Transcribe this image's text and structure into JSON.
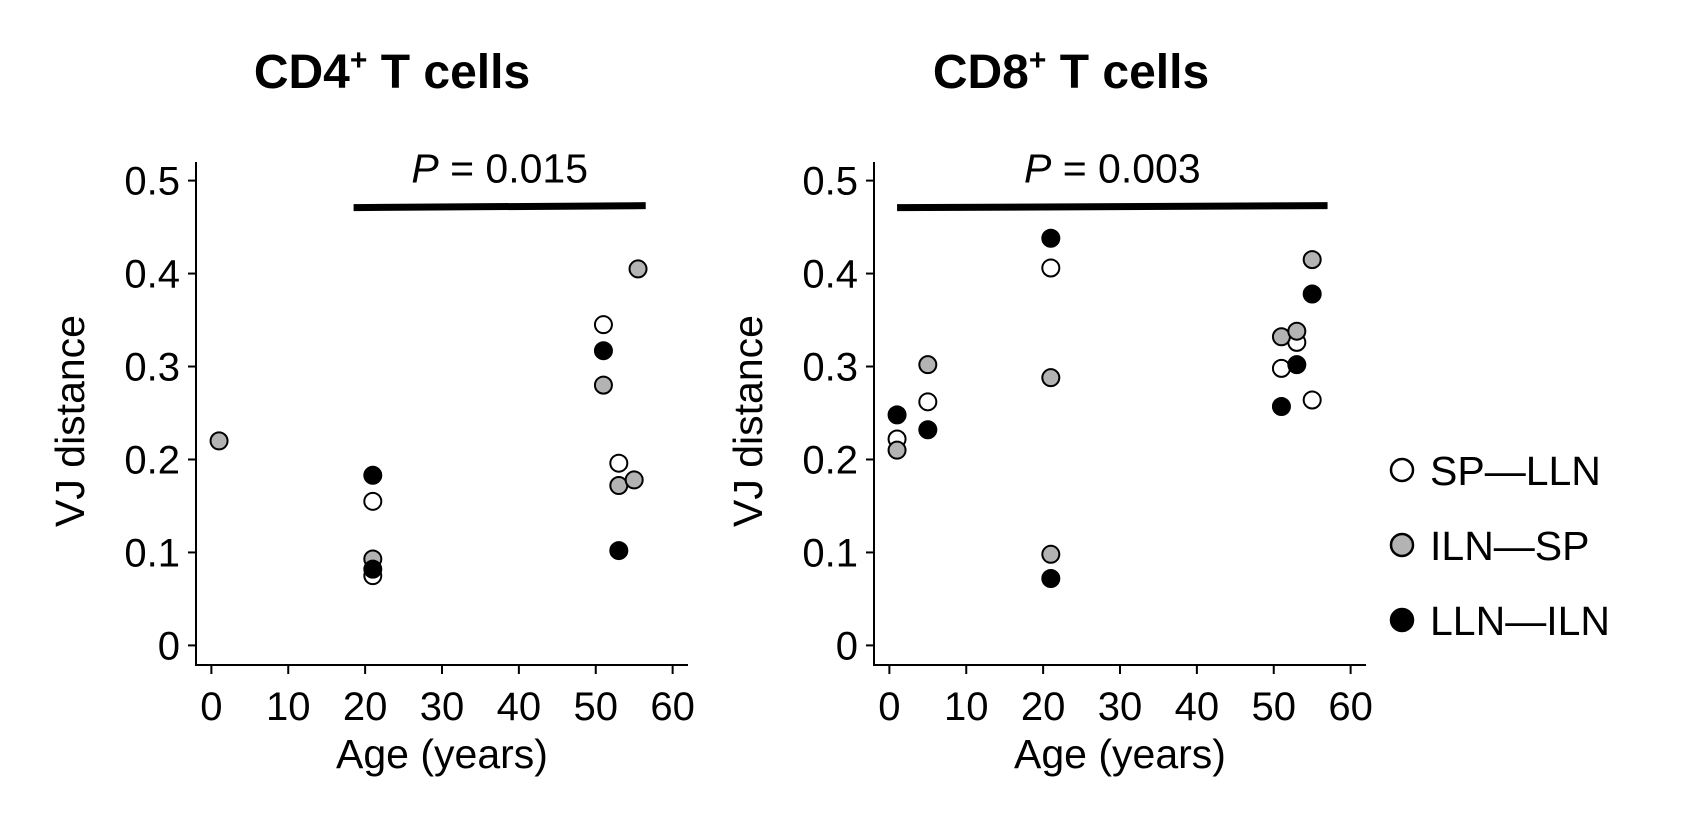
{
  "colors": {
    "SP-LLN": "#ffffff",
    "ILN-SP": "#b3b3b3",
    "LLN-ILN": "#000000",
    "stroke": "#000000"
  },
  "legend": {
    "entries": [
      {
        "key": "SP-LLN",
        "label": "SP—LLN"
      },
      {
        "key": "ILN-SP",
        "label": "ILN—SP"
      },
      {
        "key": "LLN-ILN",
        "label": "LLN—ILN"
      }
    ],
    "placement": "right"
  },
  "chart_data": [
    {
      "type": "scatter",
      "title_main": "CD4",
      "title_sup": "+",
      "title_rest": " T cells",
      "xlabel": "Age (years)",
      "ylabel": "VJ distance",
      "xlim": [
        -2,
        62
      ],
      "ylim": [
        -0.02,
        0.52
      ],
      "xticks": [
        0,
        10,
        20,
        30,
        40,
        50,
        60
      ],
      "yticks": [
        0,
        0.1,
        0.2,
        0.3,
        0.4,
        0.5
      ],
      "ytick_labels": [
        "0",
        "0.1",
        "0.2",
        "0.3",
        "0.4",
        "0.5"
      ],
      "annotation": {
        "p_label": "P",
        "p_text": " = 0.015",
        "x_range": [
          18.5,
          56.5
        ],
        "y": 0.472
      },
      "series": [
        {
          "key": "SP-LLN",
          "name": "SP—LLN",
          "x": [
            21,
            21,
            51,
            53
          ],
          "y": [
            0.155,
            0.075,
            0.345,
            0.196
          ]
        },
        {
          "key": "ILN-SP",
          "name": "ILN—SP",
          "x": [
            1,
            21,
            51,
            53,
            55
          ],
          "y": [
            0.22,
            0.093,
            0.28,
            0.172,
            0.178
          ]
        },
        {
          "key": "LLN-ILN",
          "name": "LLN—ILN",
          "x": [
            21,
            21,
            51,
            53
          ],
          "y": [
            0.183,
            0.082,
            0.317,
            0.102
          ]
        }
      ],
      "extra_points": [
        {
          "key": "ILN-SP",
          "x": 55.5,
          "y": 0.405
        }
      ]
    },
    {
      "type": "scatter",
      "title_main": "CD8",
      "title_sup": "+",
      "title_rest": " T cells",
      "xlabel": "Age (years)",
      "ylabel": "VJ distance",
      "xlim": [
        -2,
        62
      ],
      "ylim": [
        -0.02,
        0.52
      ],
      "xticks": [
        0,
        10,
        20,
        30,
        40,
        50,
        60
      ],
      "yticks": [
        0,
        0.1,
        0.2,
        0.3,
        0.4,
        0.5
      ],
      "ytick_labels": [
        "0",
        "0.1",
        "0.2",
        "0.3",
        "0.4",
        "0.5"
      ],
      "annotation": {
        "p_label": "P",
        "p_text": " = 0.003",
        "x_range": [
          1,
          57
        ],
        "y": 0.472
      },
      "series": [
        {
          "key": "SP-LLN",
          "name": "SP—LLN",
          "x": [
            1,
            5,
            21,
            51,
            53,
            55
          ],
          "y": [
            0.222,
            0.262,
            0.406,
            0.298,
            0.326,
            0.264
          ]
        },
        {
          "key": "ILN-SP",
          "name": "ILN—SP",
          "x": [
            1,
            5,
            21,
            21,
            51,
            53,
            55
          ],
          "y": [
            0.21,
            0.302,
            0.288,
            0.098,
            0.332,
            0.338,
            0.415
          ]
        },
        {
          "key": "LLN-ILN",
          "name": "LLN—ILN",
          "x": [
            1,
            5,
            21,
            21,
            51,
            53,
            55
          ],
          "y": [
            0.248,
            0.232,
            0.438,
            0.072,
            0.257,
            0.302,
            0.378
          ]
        }
      ]
    }
  ]
}
